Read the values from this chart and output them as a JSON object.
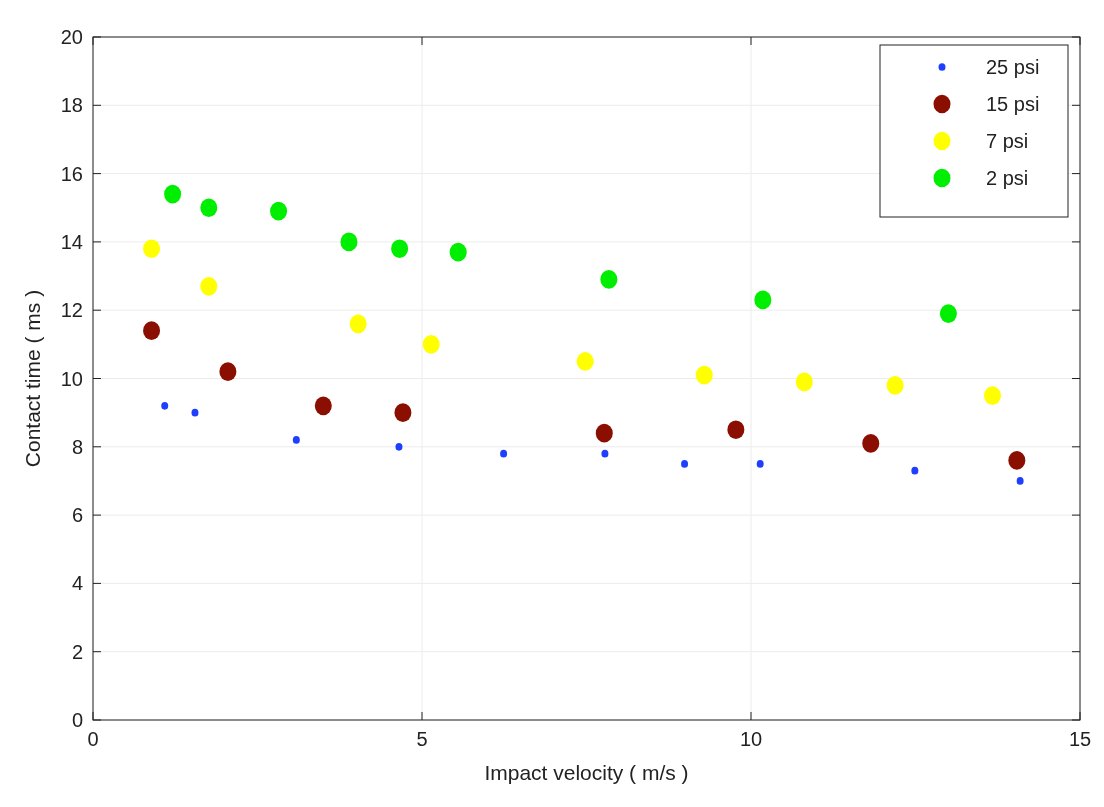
{
  "chart_data": {
    "type": "scatter",
    "xlabel": "Impact velocity ( m/s )",
    "ylabel": "Contact time ( ms )",
    "xlim": [
      0,
      15
    ],
    "xticks": [
      0,
      5,
      10,
      15
    ],
    "ylim": [
      0,
      20
    ],
    "yticks": [
      0,
      2,
      4,
      6,
      8,
      10,
      12,
      14,
      16,
      18,
      20
    ],
    "grid": true,
    "legend": "top right",
    "marker": "circle",
    "series": [
      {
        "name": "25 psi",
        "color": "#1f3fff",
        "x": [
          1.09,
          1.55,
          3.09,
          4.65,
          6.24,
          7.78,
          8.99,
          10.14,
          12.49,
          14.09
        ],
        "values": [
          9.2,
          9.0,
          8.2,
          8.0,
          7.8,
          7.8,
          7.5,
          7.5,
          7.3,
          7.0
        ]
      },
      {
        "name": "15 psi",
        "color": "#8b0f00",
        "x": [
          0.89,
          2.05,
          3.5,
          4.71,
          7.77,
          9.77,
          11.82,
          14.04
        ],
        "values": [
          11.4,
          10.2,
          9.2,
          9.0,
          8.4,
          8.5,
          8.1,
          7.6
        ]
      },
      {
        "name": "7 psi",
        "color": "#ffff00",
        "x": [
          0.89,
          1.76,
          4.03,
          5.14,
          7.48,
          9.29,
          10.81,
          12.19,
          13.67
        ],
        "values": [
          13.8,
          12.7,
          11.6,
          11.0,
          10.5,
          10.1,
          9.9,
          9.8,
          9.5
        ]
      },
      {
        "name": "2 psi",
        "color": "#00ee00",
        "x": [
          1.21,
          1.76,
          2.82,
          3.89,
          4.66,
          5.55,
          7.84,
          10.18,
          13.0
        ],
        "values": [
          15.4,
          15.0,
          14.9,
          14.0,
          13.8,
          13.7,
          12.9,
          12.3,
          11.9
        ]
      }
    ]
  }
}
